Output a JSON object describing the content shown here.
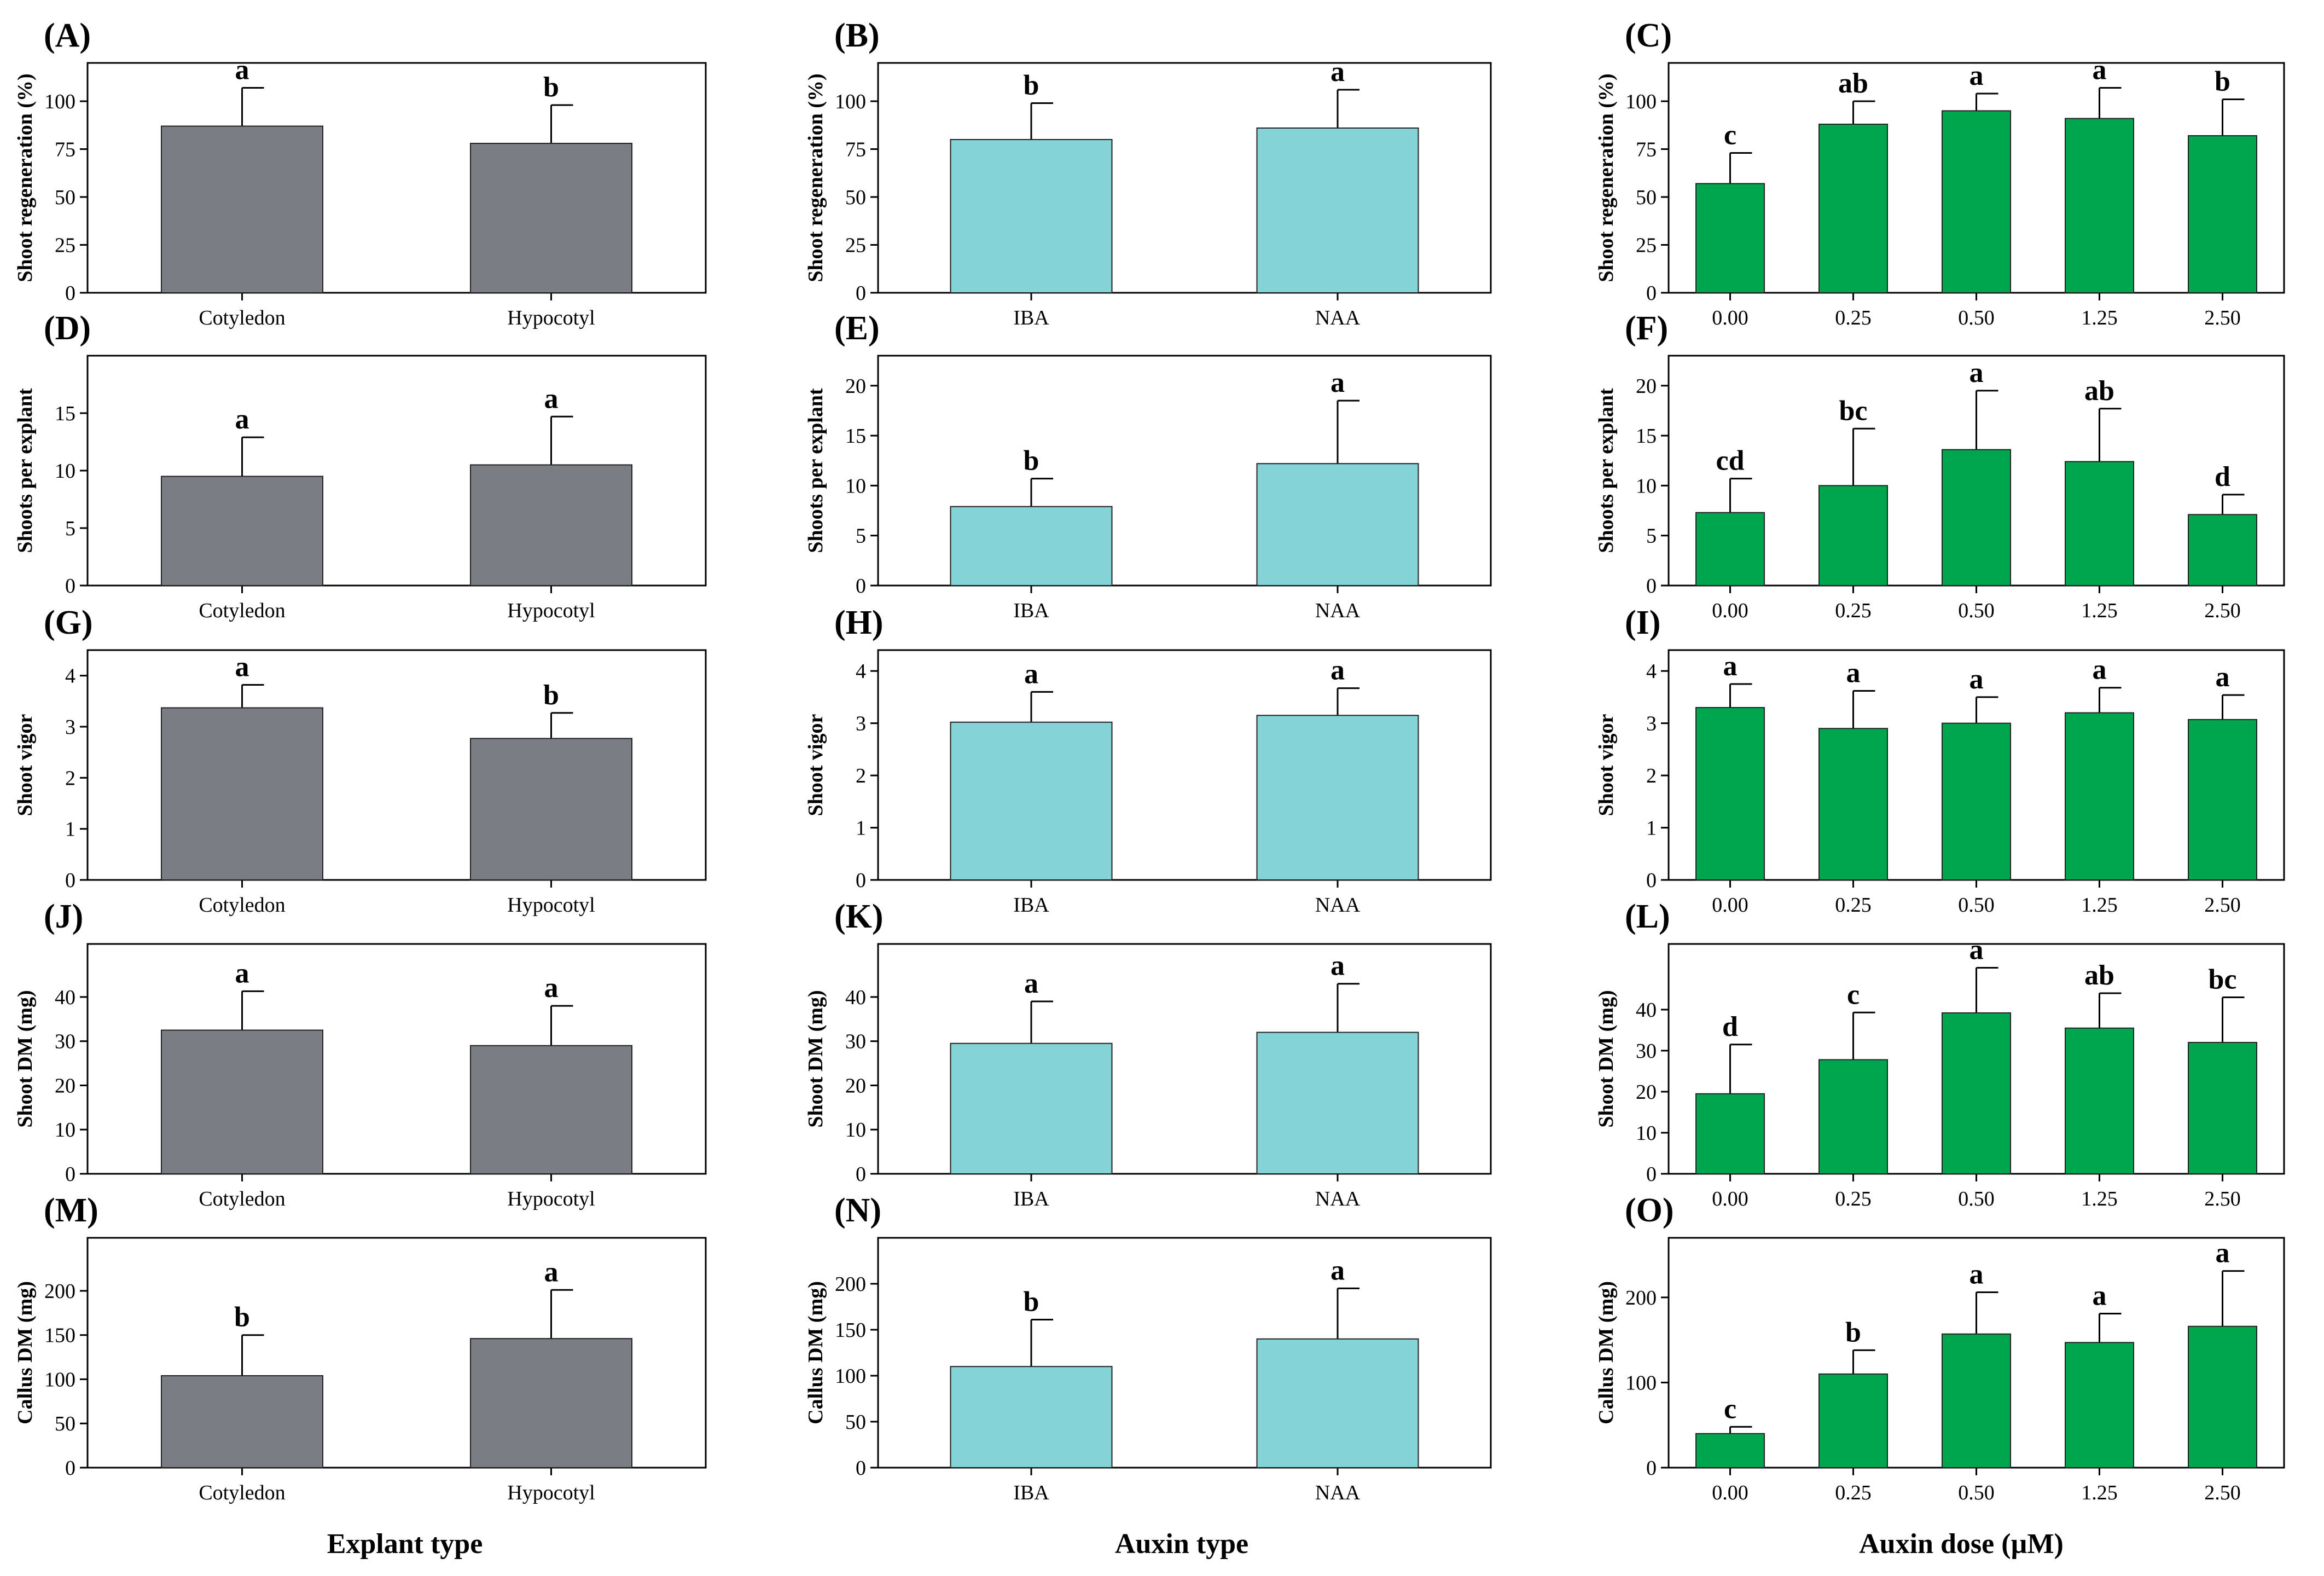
{
  "colors": {
    "explant": "#7a7d83",
    "auxin_type": "#84d3d6",
    "auxin_dose": "#00a64e"
  },
  "x_titles": [
    "Explant type",
    "Auxin type",
    "Auxin dose (µM)"
  ],
  "chart_data": [
    {
      "type": "bar",
      "panel": "(A)",
      "ylabel": "Shoot regeneration (%)",
      "categories": [
        "Cotyledon",
        "Hypocotyl"
      ],
      "values": [
        87,
        78
      ],
      "errors": [
        20,
        20
      ],
      "letters": [
        "a",
        "b"
      ],
      "ylim": [
        0,
        120
      ],
      "yticks": [
        0,
        25,
        50,
        75,
        100
      ],
      "color": "#7a7d83"
    },
    {
      "type": "bar",
      "panel": "(B)",
      "ylabel": "Shoot regeneration (%)",
      "categories": [
        "IBA",
        "NAA"
      ],
      "values": [
        80,
        86
      ],
      "errors": [
        19,
        20
      ],
      "letters": [
        "b",
        "a"
      ],
      "ylim": [
        0,
        120
      ],
      "yticks": [
        0,
        25,
        50,
        75,
        100
      ],
      "color": "#84d3d6"
    },
    {
      "type": "bar",
      "panel": "(C)",
      "ylabel": "Shoot regeneration (%)",
      "categories": [
        "0.00",
        "0.25",
        "0.50",
        "1.25",
        "2.50"
      ],
      "values": [
        57,
        88,
        95,
        91,
        82
      ],
      "errors": [
        16,
        12,
        9,
        16,
        19
      ],
      "letters": [
        "c",
        "ab",
        "a",
        "a",
        "b"
      ],
      "ylim": [
        0,
        120
      ],
      "yticks": [
        0,
        25,
        50,
        75,
        100
      ],
      "color": "#00a64e"
    },
    {
      "type": "bar",
      "panel": "(D)",
      "ylabel": "Shoots per explant",
      "categories": [
        "Cotyledon",
        "Hypocotyl"
      ],
      "values": [
        9.5,
        10.5
      ],
      "errors": [
        3.4,
        4.2
      ],
      "letters": [
        "a",
        "a"
      ],
      "ylim": [
        0,
        20
      ],
      "yticks": [
        0,
        5,
        10,
        15
      ],
      "color": "#7a7d83"
    },
    {
      "type": "bar",
      "panel": "(E)",
      "ylabel": "Shoots per explant",
      "categories": [
        "IBA",
        "NAA"
      ],
      "values": [
        7.9,
        12.2
      ],
      "errors": [
        2.8,
        6.3
      ],
      "letters": [
        "b",
        "a"
      ],
      "ylim": [
        0,
        23
      ],
      "yticks": [
        0,
        5,
        10,
        15,
        20
      ],
      "color": "#84d3d6"
    },
    {
      "type": "bar",
      "panel": "(F)",
      "ylabel": "Shoots per explant",
      "categories": [
        "0.00",
        "0.25",
        "0.50",
        "1.25",
        "2.50"
      ],
      "values": [
        7.3,
        10,
        13.6,
        12.4,
        7.1
      ],
      "errors": [
        3.4,
        5.7,
        5.9,
        5.3,
        2
      ],
      "letters": [
        "cd",
        "bc",
        "a",
        "ab",
        "d"
      ],
      "ylim": [
        0,
        23
      ],
      "yticks": [
        0,
        5,
        10,
        15,
        20
      ],
      "color": "#00a64e"
    },
    {
      "type": "bar",
      "panel": "(G)",
      "ylabel": "Shoot vigor",
      "categories": [
        "Cotyledon",
        "Hypocotyl"
      ],
      "values": [
        3.37,
        2.77
      ],
      "errors": [
        0.45,
        0.5
      ],
      "letters": [
        "a",
        "b"
      ],
      "ylim": [
        0,
        4.5
      ],
      "yticks": [
        0,
        1,
        2,
        3,
        4
      ],
      "color": "#7a7d83"
    },
    {
      "type": "bar",
      "panel": "(H)",
      "ylabel": "Shoot vigor",
      "categories": [
        "IBA",
        "NAA"
      ],
      "values": [
        3.02,
        3.15
      ],
      "errors": [
        0.58,
        0.52
      ],
      "letters": [
        "a",
        "a"
      ],
      "ylim": [
        0,
        4.4
      ],
      "yticks": [
        0,
        1,
        2,
        3,
        4
      ],
      "color": "#84d3d6"
    },
    {
      "type": "bar",
      "panel": "(I)",
      "ylabel": "Shoot vigor",
      "categories": [
        "0.00",
        "0.25",
        "0.50",
        "1.25",
        "2.50"
      ],
      "values": [
        3.3,
        2.9,
        3,
        3.2,
        3.07
      ],
      "errors": [
        0.45,
        0.72,
        0.5,
        0.48,
        0.47
      ],
      "letters": [
        "a",
        "a",
        "a",
        "a",
        "a"
      ],
      "ylim": [
        0,
        4.4
      ],
      "yticks": [
        0,
        1,
        2,
        3,
        4
      ],
      "color": "#00a64e"
    },
    {
      "type": "bar",
      "panel": "(J)",
      "ylabel": "Shoot DM (mg)",
      "categories": [
        "Cotyledon",
        "Hypocotyl"
      ],
      "values": [
        32.5,
        29
      ],
      "errors": [
        8.8,
        9
      ],
      "letters": [
        "a",
        "a"
      ],
      "ylim": [
        0,
        52
      ],
      "yticks": [
        0,
        10,
        20,
        30,
        40
      ],
      "color": "#7a7d83"
    },
    {
      "type": "bar",
      "panel": "(K)",
      "ylabel": "Shoot DM (mg)",
      "categories": [
        "IBA",
        "NAA"
      ],
      "values": [
        29.5,
        32
      ],
      "errors": [
        9.5,
        11
      ],
      "letters": [
        "a",
        "a"
      ],
      "ylim": [
        0,
        52
      ],
      "yticks": [
        0,
        10,
        20,
        30,
        40
      ],
      "color": "#84d3d6"
    },
    {
      "type": "bar",
      "panel": "(L)",
      "ylabel": "Shoot DM (mg)",
      "categories": [
        "0.00",
        "0.25",
        "0.50",
        "1.25",
        "2.50"
      ],
      "values": [
        19.5,
        27.8,
        39.2,
        35.5,
        32
      ],
      "errors": [
        12,
        11.5,
        11,
        8.5,
        11
      ],
      "letters": [
        "d",
        "c",
        "a",
        "ab",
        "bc"
      ],
      "ylim": [
        0,
        56
      ],
      "yticks": [
        0,
        10,
        20,
        30,
        40
      ],
      "color": "#00a64e"
    },
    {
      "type": "bar",
      "panel": "(M)",
      "ylabel": "Callus DM (mg)",
      "categories": [
        "Cotyledon",
        "Hypocotyl"
      ],
      "values": [
        104,
        146
      ],
      "errors": [
        46,
        55
      ],
      "letters": [
        "b",
        "a"
      ],
      "ylim": [
        0,
        260
      ],
      "yticks": [
        0,
        50,
        100,
        150,
        200
      ],
      "color": "#7a7d83"
    },
    {
      "type": "bar",
      "panel": "(N)",
      "ylabel": "Callus DM (mg)",
      "categories": [
        "IBA",
        "NAA"
      ],
      "values": [
        110,
        140
      ],
      "errors": [
        51,
        55
      ],
      "letters": [
        "b",
        "a"
      ],
      "ylim": [
        0,
        250
      ],
      "yticks": [
        0,
        50,
        100,
        150,
        200
      ],
      "color": "#84d3d6"
    },
    {
      "type": "bar",
      "panel": "(O)",
      "ylabel": "Callus DM (mg)",
      "categories": [
        "0.00",
        "0.25",
        "0.50",
        "1.25",
        "2.50"
      ],
      "values": [
        40,
        110,
        157,
        147,
        166
      ],
      "errors": [
        8,
        28,
        49,
        34,
        65
      ],
      "letters": [
        "c",
        "b",
        "a",
        "a",
        "a"
      ],
      "ylim": [
        0,
        270
      ],
      "yticks": [
        0,
        100,
        200
      ],
      "color": "#00a64e"
    }
  ]
}
